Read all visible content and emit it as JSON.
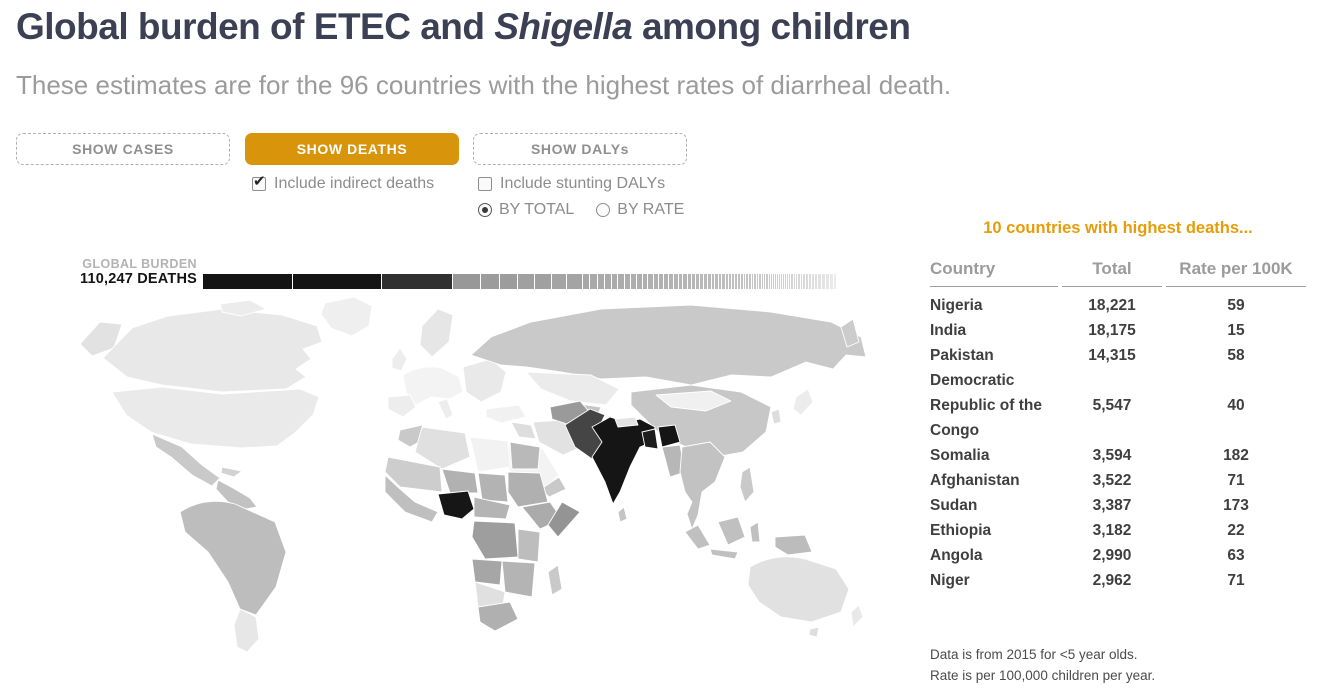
{
  "header": {
    "title_prefix": "Global burden of ETEC and ",
    "title_italic": "Shigella",
    "title_suffix": " among children",
    "subtitle": "These estimates are for the 96 countries with the highest rates of diarrheal death."
  },
  "controls": {
    "show_cases_label": "SHOW CASES",
    "show_deaths_label": "SHOW DEATHS",
    "show_dalys_label": "SHOW DALYs",
    "active_button": "SHOW DEATHS",
    "include_indirect": {
      "label": "Include indirect deaths",
      "checked": true
    },
    "include_stunting": {
      "label": "Include stunting DALYs",
      "checked": false
    },
    "by_total": {
      "label": "BY TOTAL",
      "selected": true
    },
    "by_rate": {
      "label": "BY RATE",
      "selected": false
    }
  },
  "icons": {
    "check": "✔"
  },
  "burden": {
    "label_top": "GLOBAL BURDEN",
    "label_value": "110,247 DEATHS"
  },
  "panel": {
    "title": "10 countries with highest deaths...",
    "columns": [
      "Country",
      "Total",
      "Rate per 100K"
    ],
    "rows": [
      {
        "country": "Nigeria",
        "total": "18,221",
        "rate": "59"
      },
      {
        "country": "India",
        "total": "18,175",
        "rate": "15"
      },
      {
        "country": "Pakistan",
        "total": "14,315",
        "rate": "58"
      },
      {
        "country": "Democratic Republic of the Congo",
        "total": "5,547",
        "rate": "40"
      },
      {
        "country": "Somalia",
        "total": "3,594",
        "rate": "182"
      },
      {
        "country": "Afghanistan",
        "total": "3,522",
        "rate": "71"
      },
      {
        "country": "Sudan",
        "total": "3,387",
        "rate": "173"
      },
      {
        "country": "Ethiopia",
        "total": "3,182",
        "rate": "22"
      },
      {
        "country": "Angola",
        "total": "2,990",
        "rate": "63"
      },
      {
        "country": "Niger",
        "total": "2,962",
        "rate": "71"
      }
    ],
    "footnotes": [
      "Data is from 2015 for <5 year olds.",
      "Rate is per 100,000 children per year."
    ]
  },
  "colors": {
    "accent_orange_button": "#d8940b",
    "accent_orange_title": "#e79c0b",
    "title_navy": "#3b4054",
    "subtitle_gray": "#9b9b9b",
    "bar_darkest": "#141414",
    "bar_lightest": "#ebebeb"
  },
  "chart_data": {
    "type": "heatmap",
    "subtype": "world-choropleth-with-stacked-total-bar",
    "metric": "deaths of children under 5 from ETEC and Shigella",
    "global_total": 110247,
    "countries_covered": 96,
    "year": 2015,
    "top_countries": [
      {
        "name": "Nigeria",
        "total": 18221,
        "rate_per_100k": 59
      },
      {
        "name": "India",
        "total": 18175,
        "rate_per_100k": 15
      },
      {
        "name": "Pakistan",
        "total": 14315,
        "rate_per_100k": 58
      },
      {
        "name": "Democratic Republic of the Congo",
        "total": 5547,
        "rate_per_100k": 40
      },
      {
        "name": "Somalia",
        "total": 3594,
        "rate_per_100k": 182
      },
      {
        "name": "Afghanistan",
        "total": 3522,
        "rate_per_100k": 71
      },
      {
        "name": "Sudan",
        "total": 3387,
        "rate_per_100k": 173
      },
      {
        "name": "Ethiopia",
        "total": 3182,
        "rate_per_100k": 22
      },
      {
        "name": "Angola",
        "total": 2990,
        "rate_per_100k": 63
      },
      {
        "name": "Niger",
        "total": 2962,
        "rate_per_100k": 71
      }
    ],
    "bar_segment_colors_top10": [
      "#141414",
      "#141414",
      "#303030",
      "#989898",
      "#9c9c9c",
      "#9c9c9c",
      "#a0a0a0",
      "#a0a0a0",
      "#a4a4a4",
      "#a4a4a4"
    ],
    "legend": "darker country shading = more deaths"
  },
  "map": {
    "regions": {
      "alaska": "#e2e2e2",
      "canada": "#e8e8e8",
      "arctic_islands": "#ececec",
      "greenland": "#efefef",
      "usa": "#eaeaea",
      "mexico": "#c9c9c9",
      "central_america": "#c2c2c2",
      "cuba": "#d2d2d2",
      "sa_north": "#bdbdbd",
      "argentina_chile": "#e7e7e7",
      "scandinavia": "#e6e6e6",
      "uk": "#ededed",
      "europe_west": "#f3f3f3",
      "iberia": "#ededed",
      "italy": "#ededed",
      "europe_east": "#e9e9e9",
      "russia": "#c9c9c9",
      "kamchatka": "#cccccc",
      "kazakhstan": "#ebebeb",
      "central_asia": "#c4c4c4",
      "china": "#c7c7c7",
      "mongolia": "#f0f0f0",
      "korea": "#dddddd",
      "japan": "#ececec",
      "turkey": "#f1f1f1",
      "iraq_syria": "#dddddd",
      "iran": "#e2e2e2",
      "saudi": "#f3f3f3",
      "yemen_oman": "#c9c9c9",
      "morocco": "#c9c9c9",
      "algeria": "#e0e0e0",
      "libya": "#f2f2f2",
      "egypt": "#b9b9b9",
      "mauritania_mali": "#cdcdcd",
      "west_africa": "#bfbfbf",
      "niger_country": "#b1b1b1",
      "chad": "#b3b3b3",
      "sudan_country": "#b0b0b0",
      "nigeria": "#161616",
      "cameroon_car": "#b4b4b4",
      "ethiopia": "#ababab",
      "somalia": "#949494",
      "drc": "#9e9e9e",
      "east_africa": "#bdbdbd",
      "angola": "#a6a6a6",
      "zambia_mozambique": "#b4b4b4",
      "namibia_botswana": "#e0e0e0",
      "south_africa": "#b0b0b0",
      "madagascar": "#c9c9c9",
      "afghanistan": "#9a9a9a",
      "pakistan": "#454545",
      "india": "#151515",
      "nepal": "#e3e3e3",
      "bangladesh": "#1c1c1c",
      "india_ne": "#151515",
      "sri_lanka": "#c4c4c4",
      "myanmar": "#b7b7b7",
      "indochina": "#c2c2c2",
      "philippines": "#c9c9c9",
      "sumatra": "#c0c0c0",
      "java": "#c0c0c0",
      "borneo": "#c0c0c0",
      "sulawesi": "#c0c0c0",
      "papua": "#bcbcbc",
      "australia": "#e1e1e1",
      "tasmania": "#dedede",
      "new_zealand": "#e9e9e9"
    }
  }
}
